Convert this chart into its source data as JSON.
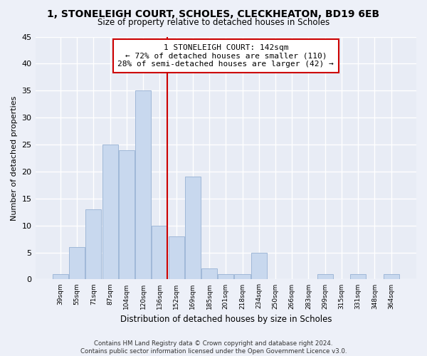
{
  "title": "1, STONELEIGH COURT, SCHOLES, CLECKHEATON, BD19 6EB",
  "subtitle": "Size of property relative to detached houses in Scholes",
  "xlabel": "Distribution of detached houses by size in Scholes",
  "ylabel": "Number of detached properties",
  "categories": [
    "39sqm",
    "55sqm",
    "71sqm",
    "87sqm",
    "104sqm",
    "120sqm",
    "136sqm",
    "152sqm",
    "169sqm",
    "185sqm",
    "201sqm",
    "218sqm",
    "234sqm",
    "250sqm",
    "266sqm",
    "283sqm",
    "299sqm",
    "315sqm",
    "331sqm",
    "348sqm",
    "364sqm"
  ],
  "values": [
    1,
    6,
    13,
    25,
    24,
    35,
    10,
    8,
    19,
    2,
    1,
    1,
    5,
    0,
    0,
    0,
    1,
    0,
    1,
    0,
    1
  ],
  "bar_color": "#c8d8ee",
  "bar_edge_color": "#a0b8d8",
  "vline_color": "#cc0000",
  "annotation_lines": [
    "1 STONELEIGH COURT: 142sqm",
    "← 72% of detached houses are smaller (110)",
    "28% of semi-detached houses are larger (42) →"
  ],
  "annotation_box_edge_color": "#cc0000",
  "ylim": [
    0,
    45
  ],
  "yticks": [
    0,
    5,
    10,
    15,
    20,
    25,
    30,
    35,
    40,
    45
  ],
  "footer_line1": "Contains HM Land Registry data © Crown copyright and database right 2024.",
  "footer_line2": "Contains public sector information licensed under the Open Government Licence v3.0.",
  "bg_color": "#edf0f8",
  "plot_bg_color": "#e8ecf5",
  "grid_color": "#ffffff"
}
